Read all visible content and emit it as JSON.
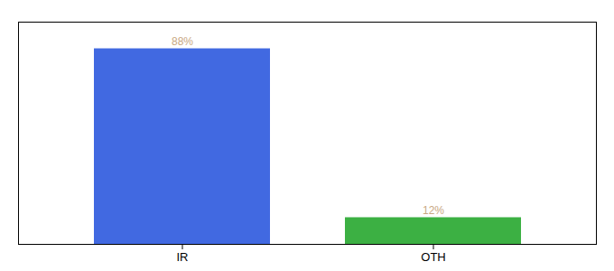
{
  "chart_data": {
    "type": "bar",
    "categories": [
      "IR",
      "OTH"
    ],
    "values": [
      88,
      12
    ],
    "colors": [
      "#4169E1",
      "#3CB043"
    ],
    "ylim": [
      0,
      100
    ],
    "yticks": [],
    "tick_labels": "x",
    "data_labels": true,
    "value_labels": [
      "88%",
      "12%"
    ],
    "grid": false
  }
}
